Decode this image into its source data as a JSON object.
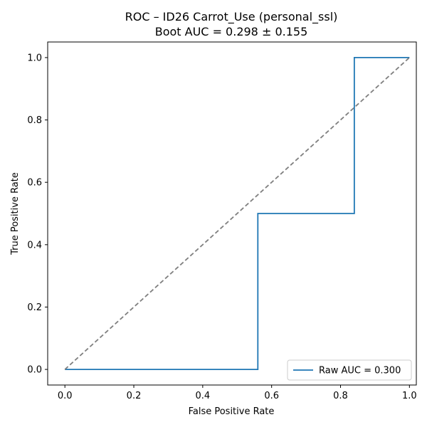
{
  "chart_data": {
    "type": "line",
    "title": "ROC – ID26 Carrot_Use (personal_ssl)",
    "subtitle": "Boot AUC = 0.298 ± 0.155",
    "xlabel": "False Positive Rate",
    "ylabel": "True Positive Rate",
    "xlim": [
      -0.05,
      1.02
    ],
    "ylim": [
      -0.05,
      1.05
    ],
    "xticks": [
      0.0,
      0.2,
      0.4,
      0.6,
      0.8,
      1.0
    ],
    "yticks": [
      0.0,
      0.2,
      0.4,
      0.6,
      0.8,
      1.0
    ],
    "xtick_labels": [
      "0.0",
      "0.2",
      "0.4",
      "0.6",
      "0.8",
      "1.0"
    ],
    "ytick_labels": [
      "0.0",
      "0.2",
      "0.4",
      "0.6",
      "0.8",
      "1.0"
    ],
    "grid": false,
    "legend_position": "lower-right",
    "series": [
      {
        "name": "Raw AUC = 0.300",
        "color": "#1f77b4",
        "style": "solid",
        "x": [
          0.0,
          0.56,
          0.56,
          0.84,
          0.84,
          1.0
        ],
        "y": [
          0.0,
          0.0,
          0.5,
          0.5,
          1.0,
          1.0
        ]
      },
      {
        "color": "#808080",
        "style": "dashed",
        "x": [
          0.0,
          1.0
        ],
        "y": [
          0.0,
          1.0
        ]
      }
    ]
  }
}
